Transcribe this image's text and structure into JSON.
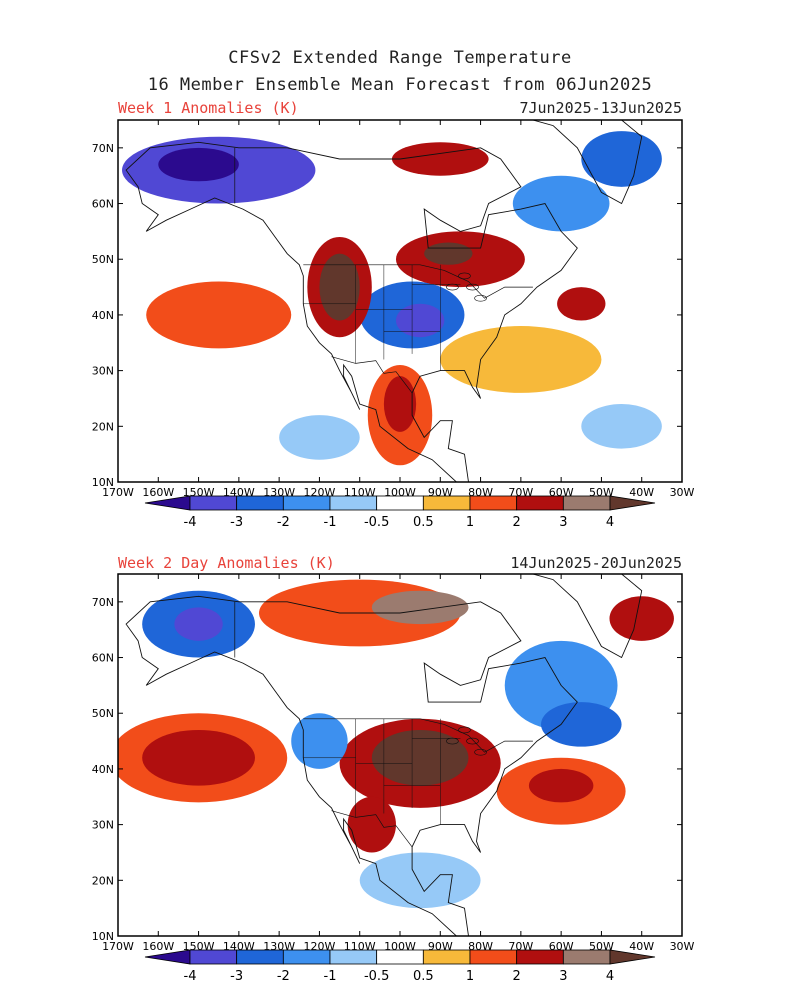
{
  "title_line1": "CFSv2 Extended Range Temperature",
  "title_line2": "16 Member Ensemble Mean Forecast from 06Jun2025",
  "panels": [
    {
      "label": "Week 1 Anomalies (K)",
      "dates": "7Jun2025-13Jun2025",
      "blobs": [
        {
          "lon": -145,
          "lat": 66,
          "rx": 24,
          "ry": 6,
          "level": -3
        },
        {
          "lon": -150,
          "lat": 67,
          "rx": 10,
          "ry": 3,
          "level": -4
        },
        {
          "lon": -97,
          "lat": 40,
          "rx": 13,
          "ry": 6,
          "level": -2
        },
        {
          "lon": -95,
          "lat": 39,
          "rx": 6,
          "ry": 3,
          "level": -3
        },
        {
          "lon": -45,
          "lat": 68,
          "rx": 10,
          "ry": 5,
          "level": -2
        },
        {
          "lon": -60,
          "lat": 60,
          "rx": 12,
          "ry": 5,
          "level": -1
        },
        {
          "lon": -115,
          "lat": 45,
          "rx": 8,
          "ry": 9,
          "level": 2
        },
        {
          "lon": -115,
          "lat": 45,
          "rx": 5,
          "ry": 6,
          "level": 4
        },
        {
          "lon": -85,
          "lat": 50,
          "rx": 16,
          "ry": 5,
          "level": 2
        },
        {
          "lon": -88,
          "lat": 51,
          "rx": 6,
          "ry": 2,
          "level": 4
        },
        {
          "lon": -90,
          "lat": 68,
          "rx": 12,
          "ry": 3,
          "level": 2
        },
        {
          "lon": -145,
          "lat": 40,
          "rx": 18,
          "ry": 6,
          "level": 1
        },
        {
          "lon": -70,
          "lat": 32,
          "rx": 20,
          "ry": 6,
          "level": 0.5
        },
        {
          "lon": -100,
          "lat": 22,
          "rx": 8,
          "ry": 9,
          "level": 1
        },
        {
          "lon": -100,
          "lat": 24,
          "rx": 4,
          "ry": 5,
          "level": 2
        },
        {
          "lon": -55,
          "lat": 42,
          "rx": 6,
          "ry": 3,
          "level": 2
        },
        {
          "lon": -45,
          "lat": 20,
          "rx": 10,
          "ry": 4,
          "level": -0.5
        },
        {
          "lon": -120,
          "lat": 18,
          "rx": 10,
          "ry": 4,
          "level": -0.5
        }
      ]
    },
    {
      "label": "Week 2 Day Anomalies (K)",
      "dates": "14Jun2025-20Jun2025",
      "blobs": [
        {
          "lon": -150,
          "lat": 66,
          "rx": 14,
          "ry": 6,
          "level": -2
        },
        {
          "lon": -150,
          "lat": 66,
          "rx": 6,
          "ry": 3,
          "level": -3
        },
        {
          "lon": -110,
          "lat": 68,
          "rx": 25,
          "ry": 6,
          "level": 1
        },
        {
          "lon": -95,
          "lat": 69,
          "rx": 12,
          "ry": 3,
          "level": 3
        },
        {
          "lon": -150,
          "lat": 42,
          "rx": 22,
          "ry": 8,
          "level": 1
        },
        {
          "lon": -150,
          "lat": 42,
          "rx": 14,
          "ry": 5,
          "level": 2
        },
        {
          "lon": -95,
          "lat": 41,
          "rx": 20,
          "ry": 8,
          "level": 2
        },
        {
          "lon": -95,
          "lat": 42,
          "rx": 12,
          "ry": 5,
          "level": 4
        },
        {
          "lon": -60,
          "lat": 36,
          "rx": 16,
          "ry": 6,
          "level": 1
        },
        {
          "lon": -60,
          "lat": 37,
          "rx": 8,
          "ry": 3,
          "level": 2
        },
        {
          "lon": -107,
          "lat": 30,
          "rx": 6,
          "ry": 5,
          "level": 2
        },
        {
          "lon": -60,
          "lat": 55,
          "rx": 14,
          "ry": 8,
          "level": -1
        },
        {
          "lon": -55,
          "lat": 48,
          "rx": 10,
          "ry": 4,
          "level": -2
        },
        {
          "lon": -40,
          "lat": 67,
          "rx": 8,
          "ry": 4,
          "level": 2
        },
        {
          "lon": -120,
          "lat": 45,
          "rx": 7,
          "ry": 5,
          "level": -1
        },
        {
          "lon": -95,
          "lat": 20,
          "rx": 15,
          "ry": 5,
          "level": -0.5
        }
      ]
    }
  ],
  "axes": {
    "lon_labels": [
      "170W",
      "160W",
      "150W",
      "140W",
      "130W",
      "120W",
      "110W",
      "100W",
      "90W",
      "80W",
      "70W",
      "60W",
      "50W",
      "40W",
      "30W"
    ],
    "lat_labels": [
      "10N",
      "20N",
      "30N",
      "40N",
      "50N",
      "60N",
      "70N"
    ]
  },
  "colorbar": {
    "labels": [
      "-4",
      "-3",
      "-2",
      "-1",
      "-0.5",
      "0.5",
      "1",
      "2",
      "3",
      "4"
    ],
    "colors": [
      "#2b0a8e",
      "#5048d4",
      "#1f66d8",
      "#3d90ef",
      "#96c9f7",
      "#ffffff",
      "#f7b93a",
      "#f24d1a",
      "#b00f0f",
      "#9b7b6f",
      "#61372c"
    ]
  },
  "colors": {
    "-4": "#2b0a8e",
    "-3": "#5048d4",
    "-2": "#1f66d8",
    "-1": "#3d90ef",
    "-0.5": "#96c9f7",
    "0.5": "#f7b93a",
    "1": "#f24d1a",
    "2": "#b00f0f",
    "3": "#9b7b6f",
    "4": "#61372c"
  }
}
